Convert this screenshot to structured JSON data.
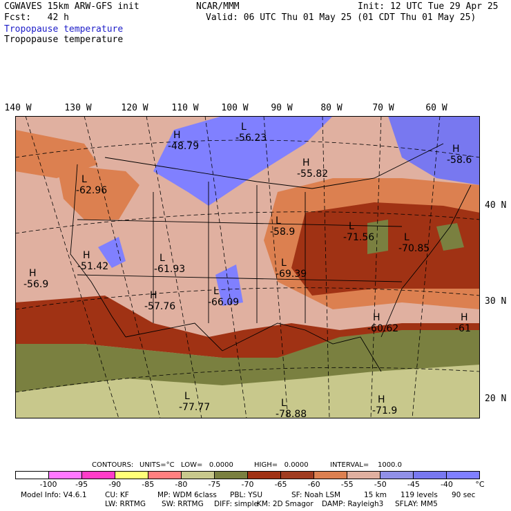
{
  "header": {
    "model": "CGWAVES 15km ARW-GFS init",
    "forecast": "Fcst:   42 h",
    "org": "NCAR/MMM",
    "init": "Init: 12 UTC Tue 29 Apr 25",
    "valid": "Valid: 06 UTC Thu 01 May 25 (01 CDT Thu 01 May 25)",
    "field1": "Tropopause temperature",
    "field2": "Tropopause temperature"
  },
  "axes": {
    "lon_labels": [
      "140 W",
      "130 W",
      "120 W",
      "110 W",
      "100 W",
      "90 W",
      "80 W",
      "70 W",
      "60 W"
    ],
    "lat_labels": [
      "40 N",
      "30 N",
      "20 N"
    ]
  },
  "map_labels": [
    {
      "letter": "L",
      "value": "-56.23"
    },
    {
      "letter": "H",
      "value": "-48.79"
    },
    {
      "letter": "H",
      "value": "-55.82"
    },
    {
      "letter": "L",
      "value": "-62.96"
    },
    {
      "letter": "H",
      "value": "-58.6"
    },
    {
      "letter": "L",
      "value": "-58.9"
    },
    {
      "letter": "L",
      "value": "-71.56"
    },
    {
      "letter": "L",
      "value": "-70.85"
    },
    {
      "letter": "H",
      "value": "-51.42"
    },
    {
      "letter": "L",
      "value": "-61.93"
    },
    {
      "letter": "H",
      "value": "-56.9"
    },
    {
      "letter": "H",
      "value": "-57.76"
    },
    {
      "letter": "L",
      "value": "-66.09"
    },
    {
      "letter": "L",
      "value": "-69.39"
    },
    {
      "letter": "H",
      "value": "-60.62"
    },
    {
      "letter": "H",
      "value": "-61"
    },
    {
      "letter": "L",
      "value": "-77.77"
    },
    {
      "letter": "L",
      "value": "-78.88"
    },
    {
      "letter": "H",
      "value": "-71.9"
    }
  ],
  "contours": {
    "label": "CONTOURS:",
    "units": "UNITS=°C",
    "low": "LOW=   0.0000",
    "high": "HIGH=   0.0000",
    "interval": "INTERVAL=    1000.0"
  },
  "colorbar": {
    "colors": [
      "#ffffff",
      "#ff78ff",
      "#ff3cc8",
      "#ffff78",
      "#ff8080",
      "#c8c88c",
      "#7a8040",
      "#a03214",
      "#a03c20",
      "#dc8050",
      "#e0b0a0",
      "#9090e8",
      "#7878f0",
      "#8080ff"
    ],
    "ticks": [
      "-100",
      "-95",
      "-90",
      "-85",
      "-80",
      "-75",
      "-70",
      "-65",
      "-60",
      "-55",
      "-50",
      "-45",
      "-40",
      "°C"
    ]
  },
  "model_info": {
    "line1": [
      "Model Info: V4.6.1",
      "CU: KF",
      "MP: WDM 6class",
      "PBL: YSU",
      "SF: Noah LSM",
      "15 km",
      "119 levels",
      "90 sec"
    ],
    "line2": [
      "LW: RRTMG",
      "SW: RRTMG",
      "DIFF: simple",
      "KM: 2D Smagor",
      "DAMP: Rayleigh3",
      "SFLAY: MM5"
    ]
  }
}
